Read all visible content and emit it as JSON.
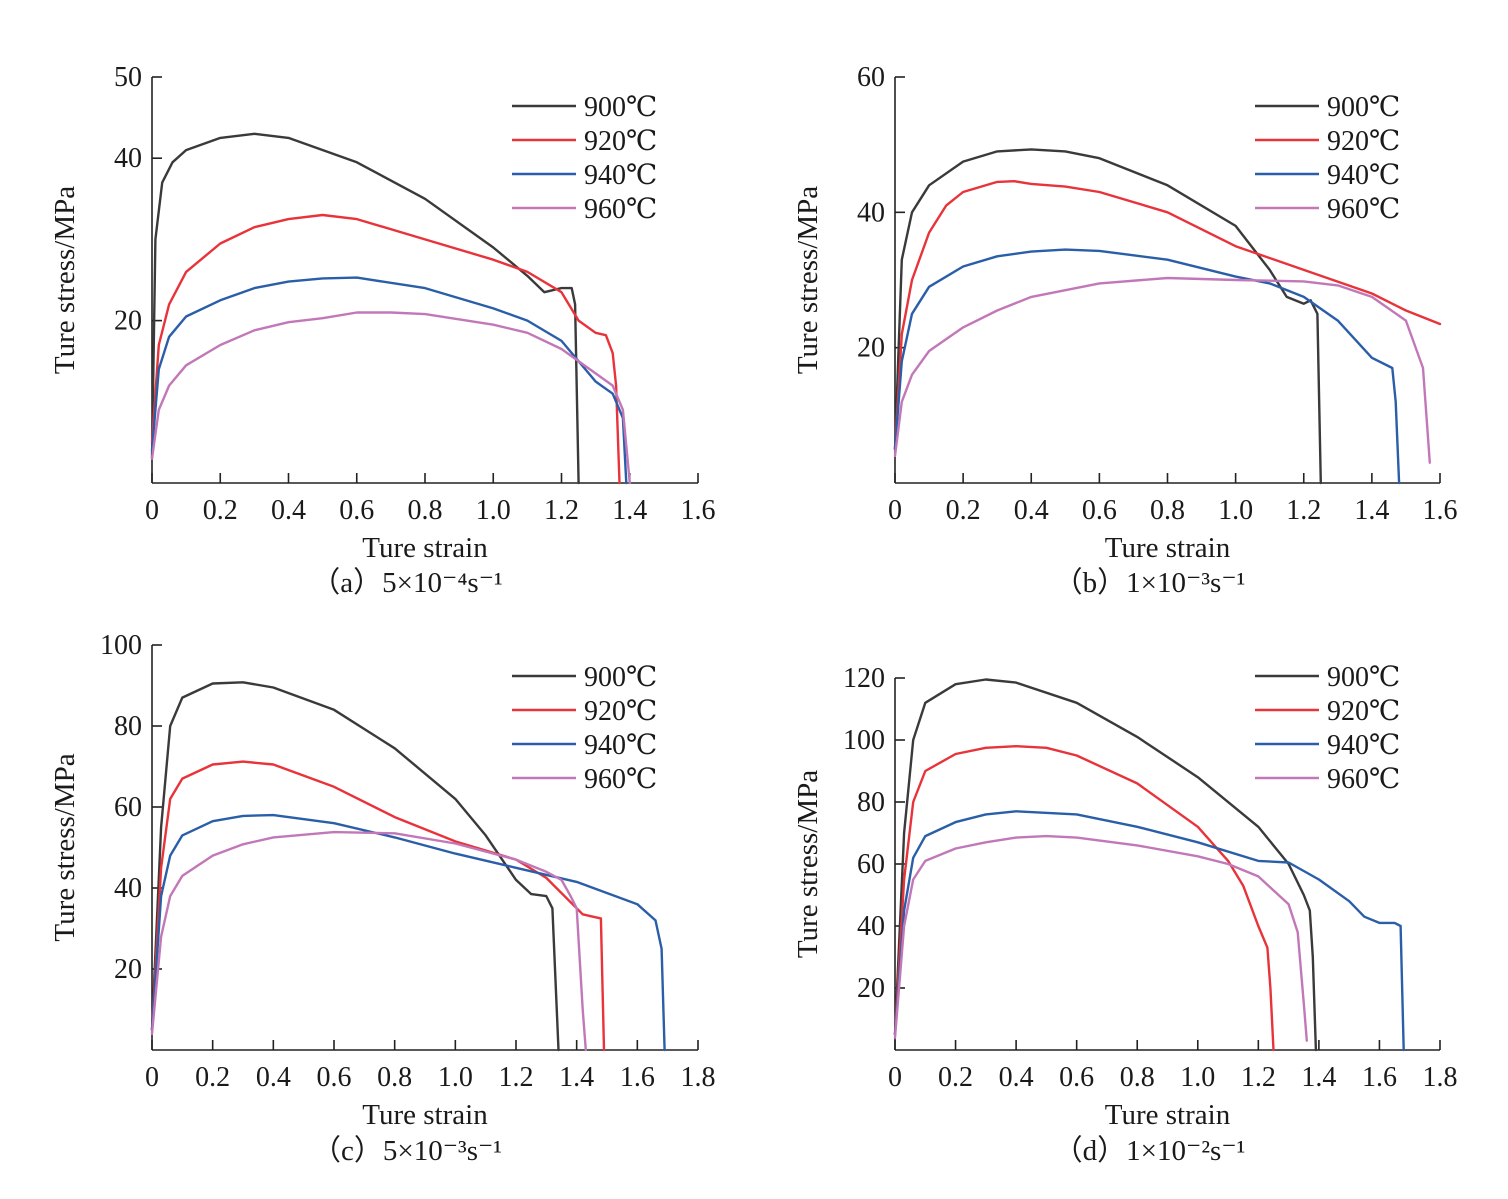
{
  "colors": {
    "900": "#3a3a3a",
    "920": "#e8333a",
    "940": "#2a5ea8",
    "960": "#c278b8"
  },
  "chart_data": [
    {
      "type": "line",
      "caption": "（a）5×10⁻⁴s⁻¹",
      "xlabel": "Ture strain",
      "ylabel": "Ture stress/MPa",
      "xlim": [
        0,
        1.6
      ],
      "ylim": [
        0,
        50
      ],
      "xticks": [
        0,
        0.2,
        0.4,
        0.6,
        0.8,
        1.0,
        1.2,
        1.4,
        1.6
      ],
      "xtick_labels": [
        "0",
        "0.2",
        "0.4",
        "0.6",
        "0.8",
        "1.0",
        "1.2",
        "1.4",
        "1.6"
      ],
      "yticks": [
        20,
        40,
        50
      ],
      "ytick_labels": [
        "20",
        "40",
        "50"
      ],
      "legend": "top-right",
      "series": [
        {
          "name": "900℃",
          "color_key": "900",
          "x": [
            0,
            0.01,
            0.03,
            0.06,
            0.1,
            0.2,
            0.3,
            0.4,
            0.6,
            0.8,
            1.0,
            1.1,
            1.15,
            1.2,
            1.23,
            1.24,
            1.25
          ],
          "y": [
            3,
            30,
            37,
            39.5,
            41,
            42.5,
            43,
            42.5,
            39.5,
            35,
            29,
            25.5,
            23.5,
            24,
            24,
            22,
            0
          ]
        },
        {
          "name": "920℃",
          "color_key": "920",
          "x": [
            0,
            0.02,
            0.05,
            0.1,
            0.2,
            0.3,
            0.4,
            0.5,
            0.6,
            0.8,
            1.0,
            1.1,
            1.2,
            1.25,
            1.3,
            1.33,
            1.35,
            1.36,
            1.37
          ],
          "y": [
            5,
            17,
            22,
            26,
            29.5,
            31.5,
            32.5,
            33,
            32.5,
            30,
            27.5,
            26,
            23.5,
            20,
            18.5,
            18.2,
            16,
            12,
            0
          ]
        },
        {
          "name": "940℃",
          "color_key": "940",
          "x": [
            0,
            0.02,
            0.05,
            0.1,
            0.2,
            0.3,
            0.4,
            0.5,
            0.6,
            0.8,
            1.0,
            1.1,
            1.2,
            1.3,
            1.35,
            1.38,
            1.39
          ],
          "y": [
            4,
            14,
            18,
            20.5,
            22.5,
            24,
            24.8,
            25.2,
            25.3,
            24,
            21.5,
            20,
            17.5,
            12.5,
            11,
            8,
            0
          ]
        },
        {
          "name": "960℃",
          "color_key": "960",
          "x": [
            0,
            0.02,
            0.05,
            0.1,
            0.2,
            0.3,
            0.4,
            0.5,
            0.6,
            0.7,
            0.8,
            1.0,
            1.1,
            1.2,
            1.3,
            1.35,
            1.38,
            1.4
          ],
          "y": [
            3,
            9,
            12,
            14.5,
            17,
            18.8,
            19.8,
            20.3,
            21,
            21,
            20.8,
            19.5,
            18.5,
            16.5,
            13.5,
            12,
            9,
            0
          ]
        }
      ]
    },
    {
      "type": "line",
      "caption": "（b）1×10⁻³s⁻¹",
      "xlabel": "Ture strain",
      "ylabel": "Ture stress/MPa",
      "xlim": [
        0,
        1.6
      ],
      "ylim": [
        0,
        60
      ],
      "xticks": [
        0,
        0.2,
        0.4,
        0.6,
        0.8,
        1.0,
        1.2,
        1.4,
        1.6
      ],
      "xtick_labels": [
        "0",
        "0.2",
        "0.4",
        "0.6",
        "0.8",
        "1.0",
        "1.2",
        "1.4",
        "1.6"
      ],
      "yticks": [
        20,
        40,
        60
      ],
      "ytick_labels": [
        "20",
        "40",
        "60"
      ],
      "legend": "top-right",
      "series": [
        {
          "name": "900℃",
          "color_key": "900",
          "x": [
            0,
            0.02,
            0.05,
            0.1,
            0.2,
            0.3,
            0.4,
            0.5,
            0.6,
            0.8,
            1.0,
            1.1,
            1.15,
            1.2,
            1.22,
            1.24,
            1.25
          ],
          "y": [
            5,
            33,
            40,
            44,
            47.5,
            49,
            49.3,
            49,
            48,
            44,
            38,
            31.5,
            27.5,
            26.5,
            27,
            25,
            0
          ]
        },
        {
          "name": "920℃",
          "color_key": "920",
          "x": [
            0,
            0.02,
            0.05,
            0.1,
            0.15,
            0.2,
            0.3,
            0.35,
            0.4,
            0.5,
            0.6,
            0.8,
            1.0,
            1.2,
            1.4,
            1.5,
            1.6
          ],
          "y": [
            5,
            22,
            30,
            37,
            41,
            43,
            44.5,
            44.6,
            44.2,
            43.8,
            43,
            40,
            35,
            31.5,
            28,
            25.5,
            23.5
          ]
        },
        {
          "name": "940℃",
          "color_key": "940",
          "x": [
            0,
            0.02,
            0.05,
            0.1,
            0.2,
            0.3,
            0.4,
            0.5,
            0.6,
            0.8,
            1.0,
            1.1,
            1.2,
            1.3,
            1.4,
            1.46,
            1.47,
            1.48
          ],
          "y": [
            5,
            18,
            25,
            29,
            32,
            33.5,
            34.2,
            34.5,
            34.3,
            33,
            30.5,
            29.5,
            27.5,
            24,
            18.5,
            17,
            12,
            0
          ]
        },
        {
          "name": "960℃",
          "color_key": "960",
          "x": [
            0,
            0.02,
            0.05,
            0.1,
            0.2,
            0.3,
            0.4,
            0.6,
            0.8,
            1.0,
            1.2,
            1.3,
            1.4,
            1.5,
            1.55,
            1.56,
            1.57
          ],
          "y": [
            4,
            12,
            16,
            19.5,
            23,
            25.5,
            27.5,
            29.5,
            30.3,
            30,
            29.8,
            29.2,
            27.5,
            24,
            17,
            10,
            3
          ]
        }
      ]
    },
    {
      "type": "line",
      "caption": "（c）5×10⁻³s⁻¹",
      "xlabel": "Ture strain",
      "ylabel": "Ture stress/MPa",
      "xlim": [
        0,
        1.8
      ],
      "ylim": [
        0,
        100
      ],
      "xticks": [
        0,
        0.2,
        0.4,
        0.6,
        0.8,
        1.0,
        1.2,
        1.4,
        1.6,
        1.8
      ],
      "xtick_labels": [
        "0",
        "0.2",
        "0.4",
        "0.6",
        "0.8",
        "1.0",
        "1.2",
        "1.4",
        "1.6",
        "1.8"
      ],
      "yticks": [
        20,
        40,
        60,
        80,
        100
      ],
      "ytick_labels": [
        "20",
        "40",
        "60",
        "80",
        "100"
      ],
      "legend": "top-right",
      "series": [
        {
          "name": "900℃",
          "color_key": "900",
          "x": [
            0,
            0.03,
            0.06,
            0.1,
            0.2,
            0.3,
            0.4,
            0.6,
            0.8,
            1.0,
            1.1,
            1.2,
            1.25,
            1.3,
            1.32,
            1.34
          ],
          "y": [
            5,
            55,
            80,
            87,
            90.5,
            90.8,
            89.5,
            84,
            74.5,
            62,
            53,
            42,
            38.5,
            38,
            35,
            0
          ]
        },
        {
          "name": "920℃",
          "color_key": "920",
          "x": [
            0,
            0.03,
            0.06,
            0.1,
            0.2,
            0.3,
            0.4,
            0.6,
            0.8,
            1.0,
            1.2,
            1.3,
            1.4,
            1.42,
            1.45,
            1.48,
            1.49
          ],
          "y": [
            5,
            45,
            62,
            67,
            70.5,
            71.2,
            70.5,
            65,
            57.5,
            51.5,
            47,
            42.5,
            35,
            33.5,
            33,
            32.5,
            0
          ]
        },
        {
          "name": "940℃",
          "color_key": "940",
          "x": [
            0,
            0.03,
            0.06,
            0.1,
            0.2,
            0.3,
            0.4,
            0.6,
            0.8,
            1.0,
            1.2,
            1.4,
            1.6,
            1.66,
            1.68,
            1.69
          ],
          "y": [
            5,
            38,
            48,
            53,
            56.5,
            57.8,
            58,
            56,
            52.5,
            48.5,
            45,
            41.5,
            36,
            32,
            25,
            0
          ]
        },
        {
          "name": "960℃",
          "color_key": "960",
          "x": [
            0,
            0.03,
            0.06,
            0.1,
            0.2,
            0.3,
            0.4,
            0.6,
            0.8,
            1.0,
            1.2,
            1.3,
            1.35,
            1.38,
            1.4,
            1.42,
            1.43
          ],
          "y": [
            4,
            28,
            38,
            43,
            48,
            50.8,
            52.5,
            53.8,
            53.5,
            51,
            47,
            44,
            42,
            38,
            35,
            10,
            0
          ]
        }
      ]
    },
    {
      "type": "line",
      "caption": "（d）1×10⁻²s⁻¹",
      "xlabel": "Ture strain",
      "ylabel": "Ture stress/MPa",
      "xlim": [
        0,
        1.8
      ],
      "ylim": [
        0,
        120
      ],
      "xticks": [
        0,
        0.2,
        0.4,
        0.6,
        0.8,
        1.0,
        1.2,
        1.4,
        1.6,
        1.8
      ],
      "xtick_labels": [
        "0",
        "0.2",
        "0.4",
        "0.6",
        "0.8",
        "1.0",
        "1.2",
        "1.4",
        "1.6",
        "1.8"
      ],
      "yticks": [
        20,
        40,
        60,
        80,
        100,
        120
      ],
      "ytick_labels": [
        "20",
        "40",
        "60",
        "80",
        "100",
        "120"
      ],
      "legend": "top-right",
      "series": [
        {
          "name": "900℃",
          "color_key": "900",
          "x": [
            0,
            0.03,
            0.06,
            0.1,
            0.2,
            0.3,
            0.4,
            0.6,
            0.8,
            1.0,
            1.2,
            1.3,
            1.35,
            1.37,
            1.38,
            1.39
          ],
          "y": [
            5,
            70,
            100,
            112,
            118,
            119.5,
            118.5,
            112,
            101,
            88,
            72,
            60,
            50,
            45,
            30,
            0
          ]
        },
        {
          "name": "920℃",
          "color_key": "920",
          "x": [
            0,
            0.03,
            0.06,
            0.1,
            0.2,
            0.3,
            0.4,
            0.5,
            0.6,
            0.8,
            1.0,
            1.1,
            1.15,
            1.2,
            1.23,
            1.24,
            1.25
          ],
          "y": [
            5,
            55,
            80,
            90,
            95.5,
            97.5,
            98,
            97.5,
            95,
            86,
            72,
            61,
            53,
            40,
            33,
            20,
            0
          ]
        },
        {
          "name": "940℃",
          "color_key": "940",
          "x": [
            0,
            0.03,
            0.06,
            0.1,
            0.2,
            0.3,
            0.4,
            0.6,
            0.8,
            1.0,
            1.2,
            1.3,
            1.4,
            1.5,
            1.55,
            1.6,
            1.65,
            1.67,
            1.68
          ],
          "y": [
            5,
            45,
            62,
            69,
            73.5,
            76,
            77,
            76,
            72,
            67,
            61,
            60.5,
            55,
            48,
            43,
            41,
            41,
            40,
            0
          ]
        },
        {
          "name": "960℃",
          "color_key": "960",
          "x": [
            0,
            0.03,
            0.06,
            0.1,
            0.2,
            0.3,
            0.4,
            0.5,
            0.6,
            0.8,
            1.0,
            1.1,
            1.2,
            1.3,
            1.33,
            1.35,
            1.36
          ],
          "y": [
            4,
            40,
            55,
            61,
            65,
            67,
            68.5,
            69,
            68.5,
            66,
            62.5,
            60,
            56,
            47,
            38,
            15,
            3
          ]
        }
      ]
    }
  ]
}
